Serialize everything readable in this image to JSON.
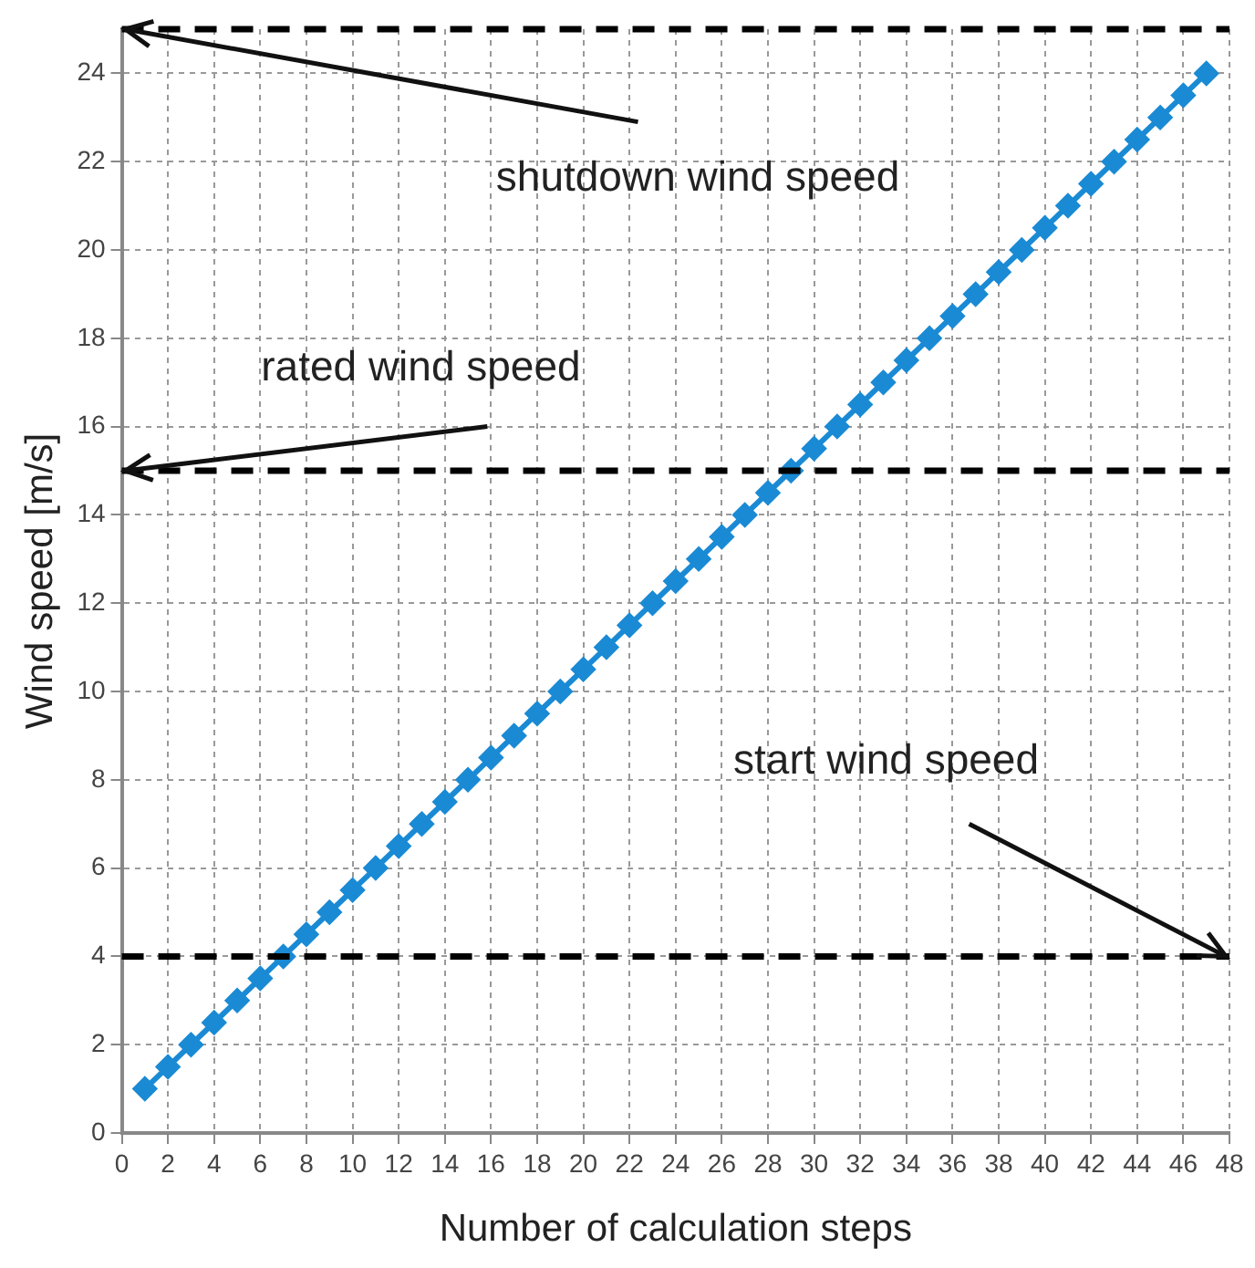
{
  "chart_data": {
    "type": "line",
    "xlabel": "Number of calculation steps",
    "ylabel": "Wind speed [m/s]",
    "x": [
      1,
      2,
      3,
      4,
      5,
      6,
      7,
      8,
      9,
      10,
      11,
      12,
      13,
      14,
      15,
      16,
      17,
      18,
      19,
      20,
      21,
      22,
      23,
      24,
      25,
      26,
      27,
      28,
      29,
      30,
      31,
      32,
      33,
      34,
      35,
      36,
      37,
      38,
      39,
      40,
      41,
      42,
      43,
      44,
      45,
      46,
      47
    ],
    "series": [
      {
        "color": "#1a8ad4",
        "values": [
          1,
          1.5,
          2,
          2.5,
          3,
          3.5,
          4,
          4.5,
          5,
          5.5,
          6,
          6.5,
          7,
          7.5,
          8,
          8.5,
          9,
          9.5,
          10,
          10.5,
          11,
          11.5,
          12,
          12.5,
          13,
          13.5,
          14,
          14.5,
          15,
          15.5,
          16,
          16.5,
          17,
          17.5,
          18,
          18.5,
          19,
          19.5,
          20,
          20.5,
          21,
          21.5,
          22,
          22.5,
          23,
          23.5,
          24
        ]
      }
    ],
    "xlim": [
      0,
      48
    ],
    "xticks": [
      0,
      2,
      4,
      6,
      8,
      10,
      12,
      14,
      16,
      18,
      20,
      22,
      24,
      26,
      28,
      30,
      32,
      34,
      36,
      38,
      40,
      42,
      44,
      46,
      48
    ],
    "ylim": [
      0,
      25
    ],
    "yticks": [
      0,
      2,
      4,
      6,
      8,
      10,
      12,
      14,
      16,
      18,
      20,
      22,
      24
    ],
    "ref_lines": [
      {
        "axis": "y",
        "value": 25,
        "label": "shutdown wind speed",
        "color": "#000000",
        "line_style": "dashed"
      },
      {
        "axis": "y",
        "value": 15,
        "label": "rated wind speed",
        "color": "#000000",
        "line_style": "dashed"
      },
      {
        "axis": "y",
        "value": 4,
        "label": "start wind speed",
        "color": "#000000",
        "line_style": "dashed"
      }
    ],
    "grid": true,
    "legend": false,
    "marker": "diamond",
    "line_style": "solid"
  }
}
